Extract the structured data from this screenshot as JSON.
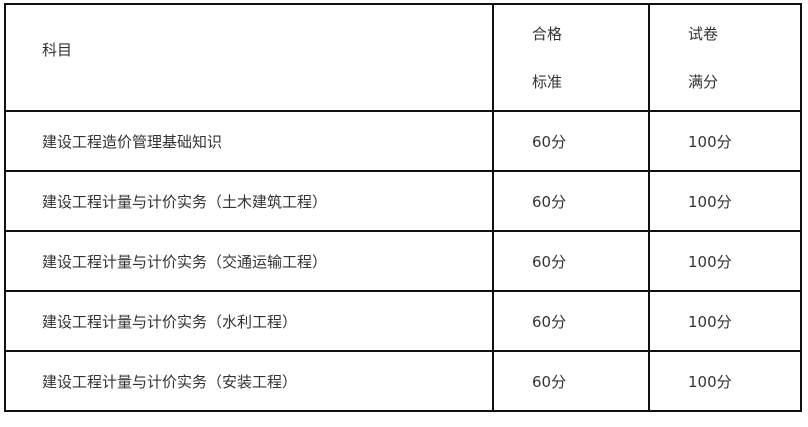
{
  "table": {
    "header": {
      "subject": "科目",
      "pass_line1": "合格",
      "pass_line2": "标准",
      "full_line1": "试卷",
      "full_line2": "满分"
    },
    "rows": [
      {
        "subject": "建设工程造价管理基础知识",
        "pass": "60分",
        "full": "100分"
      },
      {
        "subject": "建设工程计量与计价实务（土木建筑工程）",
        "pass": "60分",
        "full": "100分"
      },
      {
        "subject": "建设工程计量与计价实务（交通运输工程）",
        "pass": "60分",
        "full": "100分"
      },
      {
        "subject": "建设工程计量与计价实务（水利工程）",
        "pass": "60分",
        "full": "100分"
      },
      {
        "subject": "建设工程计量与计价实务（安装工程）",
        "pass": "60分",
        "full": "100分"
      }
    ]
  }
}
